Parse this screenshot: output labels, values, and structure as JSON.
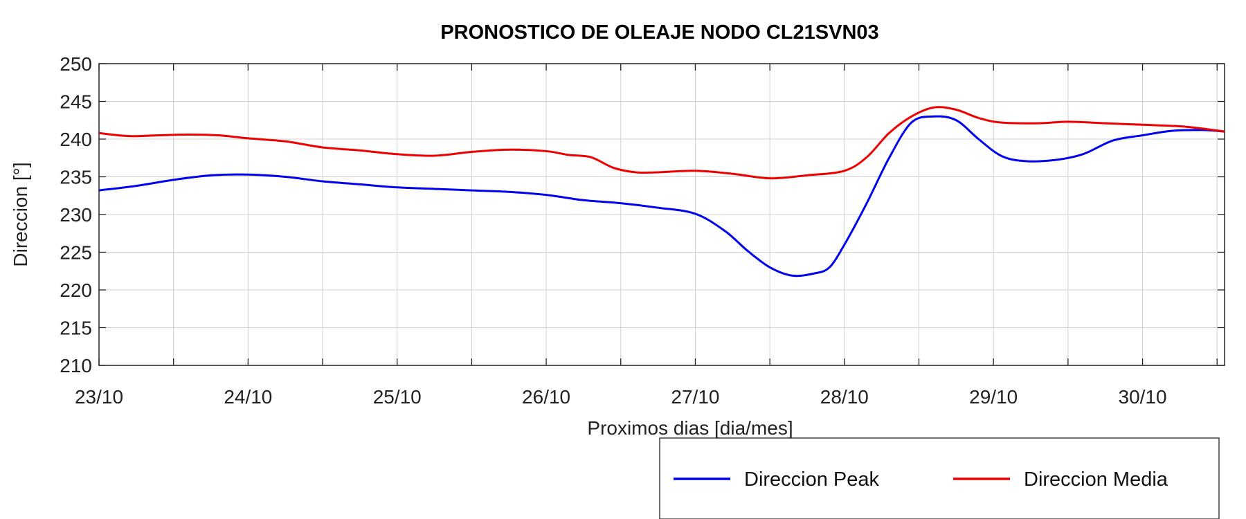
{
  "chart_data": {
    "type": "line",
    "title": "PRONOSTICO DE OLEAJE NODO CL21SVN03",
    "xlabel": "Proximos dias [dia/mes]",
    "ylabel": "Direccion [°]",
    "ylim": [
      210,
      250
    ],
    "yticks": [
      210,
      215,
      220,
      225,
      230,
      235,
      240,
      245,
      250
    ],
    "xlim": [
      0,
      7.55
    ],
    "xtick_values": [
      0,
      1,
      2,
      3,
      4,
      5,
      6,
      7
    ],
    "xtick_labels": [
      "23/10",
      "24/10",
      "25/10",
      "26/10",
      "27/10",
      "28/10",
      "29/10",
      "30/10"
    ],
    "grid": true,
    "legend_position": "bottom-right, below axes",
    "series": [
      {
        "name": "Direccion Peak",
        "color": "#0000ee",
        "x": [
          0,
          0.25,
          0.5,
          0.75,
          1,
          1.25,
          1.5,
          1.75,
          2,
          2.25,
          2.5,
          2.75,
          3,
          3.25,
          3.5,
          3.75,
          4,
          4.2,
          4.35,
          4.5,
          4.65,
          4.8,
          4.9,
          5,
          5.15,
          5.3,
          5.45,
          5.6,
          5.75,
          5.9,
          6.05,
          6.2,
          6.4,
          6.6,
          6.8,
          7,
          7.2,
          7.4,
          7.55
        ],
        "y": [
          233.2,
          233.8,
          234.6,
          235.2,
          235.3,
          235.0,
          234.4,
          234.0,
          233.6,
          233.4,
          233.2,
          233.0,
          232.6,
          231.9,
          231.5,
          230.9,
          230.1,
          227.8,
          225.2,
          223.0,
          221.9,
          222.2,
          223.0,
          226.0,
          231.5,
          237.5,
          242.2,
          243.0,
          242.5,
          240.0,
          237.8,
          237.1,
          237.2,
          238.0,
          239.8,
          240.5,
          241.1,
          241.2,
          241.0
        ]
      },
      {
        "name": "Direccion Media",
        "color": "#ee0000",
        "x": [
          0,
          0.2,
          0.4,
          0.6,
          0.8,
          1,
          1.25,
          1.5,
          1.75,
          2,
          2.25,
          2.5,
          2.75,
          3,
          3.15,
          3.3,
          3.45,
          3.6,
          3.75,
          4,
          4.25,
          4.5,
          4.75,
          5,
          5.15,
          5.3,
          5.45,
          5.6,
          5.75,
          5.9,
          6.05,
          6.3,
          6.5,
          6.75,
          7,
          7.25,
          7.4,
          7.55
        ],
        "y": [
          240.8,
          240.4,
          240.5,
          240.6,
          240.5,
          240.1,
          239.7,
          238.9,
          238.5,
          238.0,
          237.8,
          238.3,
          238.6,
          238.4,
          237.9,
          237.6,
          236.2,
          235.6,
          235.6,
          235.8,
          235.4,
          234.8,
          235.2,
          235.8,
          237.6,
          240.8,
          243.0,
          244.2,
          243.9,
          242.8,
          242.2,
          242.1,
          242.3,
          242.1,
          241.9,
          241.7,
          241.4,
          241.0
        ]
      }
    ]
  }
}
